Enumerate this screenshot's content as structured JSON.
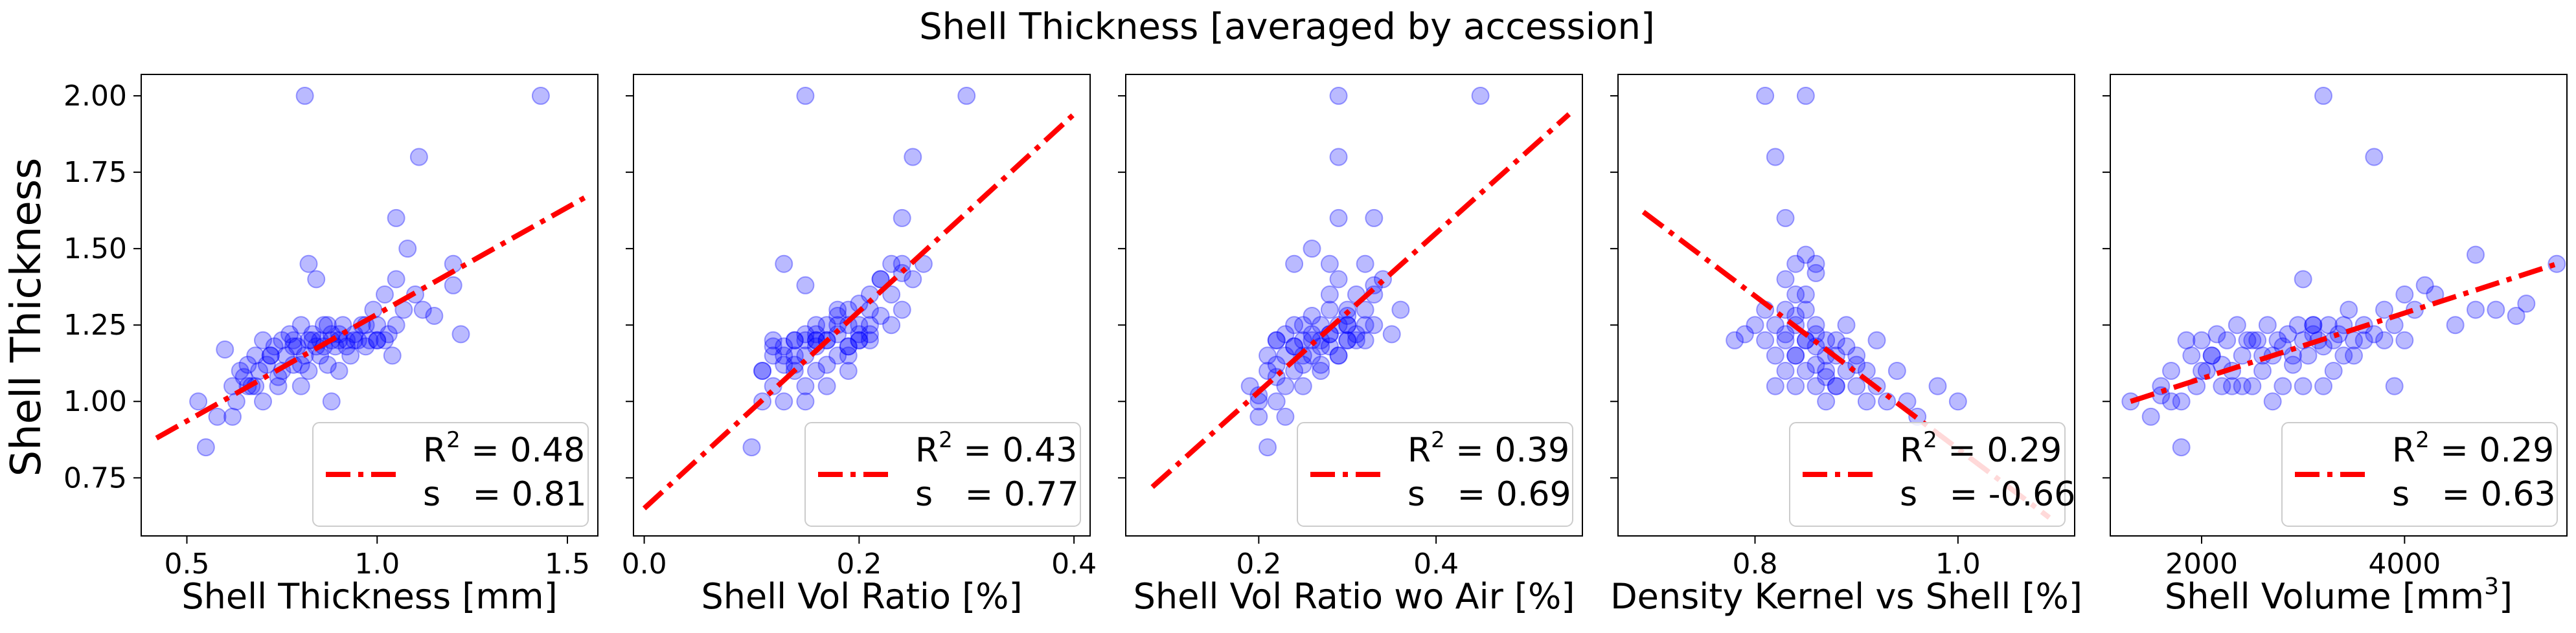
{
  "figure": {
    "title": "Shell Thickness [averaged by accession]",
    "shared_ylabel": "Shell Thickness"
  },
  "colors": {
    "points": "#0000ff",
    "fit_line": "#ff0000",
    "axes": "#000000",
    "legend_border": "#cccccc"
  },
  "chart_data": [
    {
      "type": "scatter",
      "xlabel": "Shell Thickness [mm]",
      "ylabel": "Shell Thickness",
      "xlim": [
        0.38,
        1.58
      ],
      "ylim": [
        0.56,
        2.07
      ],
      "xticks": [
        0.5,
        1.0,
        1.5
      ],
      "xtick_labels": [
        "0.5",
        "1.0",
        "1.5"
      ],
      "yticks": [
        0.75,
        1.0,
        1.25,
        1.5,
        1.75,
        2.0
      ],
      "ytick_labels": [
        "0.75",
        "1.00",
        "1.25",
        "1.50",
        "1.75",
        "2.00"
      ],
      "fit_line": {
        "x": [
          0.42,
          1.55
        ],
        "y": [
          0.88,
          1.67
        ]
      },
      "legend": {
        "r2": "0.48",
        "s": "0.81"
      },
      "series": [
        {
          "x": [
            0.53,
            0.55,
            0.58,
            0.6,
            0.62,
            0.63,
            0.64,
            0.65,
            0.66,
            0.67,
            0.68,
            0.69,
            0.7,
            0.7,
            0.71,
            0.72,
            0.73,
            0.74,
            0.75,
            0.75,
            0.76,
            0.77,
            0.78,
            0.78,
            0.79,
            0.8,
            0.8,
            0.81,
            0.82,
            0.82,
            0.83,
            0.84,
            0.85,
            0.85,
            0.86,
            0.87,
            0.88,
            0.88,
            0.89,
            0.9,
            0.9,
            0.91,
            0.92,
            0.93,
            0.94,
            0.95,
            0.96,
            0.97,
            0.98,
            0.99,
            1.0,
            1.0,
            1.02,
            1.03,
            1.05,
            1.05,
            1.07,
            1.1,
            1.12,
            1.15,
            1.2,
            1.22,
            0.62,
            0.68,
            0.72,
            0.78,
            0.83,
            0.88,
            0.92,
            0.97,
            0.74,
            0.86,
            0.94,
            1.0,
            1.04,
            0.66,
            0.8,
            0.9,
            0.82,
            0.84,
            0.87,
            1.05,
            1.08,
            0.81,
            1.11,
            1.43,
            1.2,
            1.02
          ],
          "y": [
            1.0,
            0.85,
            0.95,
            1.17,
            1.05,
            1.0,
            1.1,
            1.08,
            1.12,
            1.05,
            1.15,
            1.1,
            1.2,
            1.0,
            1.12,
            1.15,
            1.18,
            1.05,
            1.1,
            1.2,
            1.15,
            1.22,
            1.12,
            1.2,
            1.18,
            1.05,
            1.25,
            1.15,
            1.2,
            1.1,
            1.22,
            1.18,
            1.15,
            1.2,
            1.25,
            1.12,
            1.2,
            1.0,
            1.18,
            1.22,
            1.1,
            1.25,
            1.2,
            1.15,
            1.22,
            1.2,
            1.25,
            1.18,
            1.2,
            1.3,
            1.25,
            1.2,
            1.35,
            1.22,
            1.4,
            1.25,
            1.3,
            1.35,
            1.3,
            1.28,
            1.45,
            1.22,
            0.95,
            1.05,
            1.15,
            1.18,
            1.2,
            1.22,
            1.18,
            1.25,
            1.08,
            1.18,
            1.2,
            1.2,
            1.15,
            1.05,
            1.12,
            1.2,
            1.45,
            1.4,
            1.25,
            1.6,
            1.5,
            2.0,
            1.8,
            2.0,
            1.38,
            1.2
          ]
        }
      ]
    },
    {
      "type": "scatter",
      "xlabel": "Shell Vol Ratio [%]",
      "ylabel": "Shell Thickness",
      "xlim": [
        -0.01,
        0.415
      ],
      "ylim": [
        0.56,
        2.07
      ],
      "xticks": [
        0.0,
        0.2,
        0.4
      ],
      "xtick_labels": [
        "0.0",
        "0.2",
        "0.4"
      ],
      "yticks": [
        0.75,
        1.0,
        1.25,
        1.5,
        1.75,
        2.0
      ],
      "ytick_labels": [
        "",
        "",
        "",
        "",
        "",
        ""
      ],
      "fit_line": {
        "x": [
          0.0,
          0.4
        ],
        "y": [
          0.65,
          1.94
        ]
      },
      "legend": {
        "r2": "0.43",
        "s": "0.77"
      },
      "series": [
        {
          "x": [
            0.1,
            0.11,
            0.11,
            0.12,
            0.12,
            0.12,
            0.13,
            0.13,
            0.13,
            0.14,
            0.14,
            0.14,
            0.15,
            0.15,
            0.15,
            0.15,
            0.16,
            0.16,
            0.16,
            0.17,
            0.17,
            0.17,
            0.18,
            0.18,
            0.18,
            0.19,
            0.19,
            0.19,
            0.2,
            0.2,
            0.2,
            0.21,
            0.21,
            0.21,
            0.22,
            0.22,
            0.23,
            0.23,
            0.24,
            0.24,
            0.25,
            0.12,
            0.13,
            0.14,
            0.16,
            0.17,
            0.18,
            0.19,
            0.2,
            0.15,
            0.17,
            0.19,
            0.21,
            0.11,
            0.14,
            0.16,
            0.18,
            0.22,
            0.26,
            0.13,
            0.15,
            0.24,
            0.25,
            0.21,
            0.19,
            0.23,
            0.2,
            0.3,
            0.15,
            0.16,
            0.24
          ],
          "y": [
            0.85,
            1.0,
            1.1,
            1.05,
            1.15,
            1.2,
            1.0,
            1.12,
            1.18,
            1.1,
            1.2,
            1.15,
            1.05,
            1.15,
            1.2,
            1.22,
            1.1,
            1.18,
            1.25,
            1.12,
            1.2,
            1.25,
            1.15,
            1.22,
            1.28,
            1.18,
            1.25,
            1.3,
            1.2,
            1.25,
            1.32,
            1.22,
            1.3,
            1.35,
            1.28,
            1.4,
            1.25,
            1.35,
            1.3,
            1.45,
            1.4,
            1.18,
            1.15,
            1.2,
            1.22,
            1.2,
            1.25,
            1.18,
            1.2,
            1.0,
            1.05,
            1.15,
            1.25,
            1.1,
            1.12,
            1.2,
            1.3,
            1.4,
            1.45,
            1.45,
            1.38,
            1.6,
            1.8,
            1.2,
            1.1,
            1.45,
            1.22,
            2.0,
            2.0,
            1.2,
            1.42
          ]
        }
      ]
    },
    {
      "type": "scatter",
      "xlabel": "Shell Vol Ratio wo Air [%]",
      "ylabel": "Shell Thickness",
      "xlim": [
        0.05,
        0.565
      ],
      "ylim": [
        0.56,
        2.07
      ],
      "xticks": [
        0.2,
        0.4
      ],
      "xtick_labels": [
        "0.2",
        "0.4"
      ],
      "yticks": [
        0.75,
        1.0,
        1.25,
        1.5,
        1.75,
        2.0
      ],
      "ytick_labels": [
        "",
        "",
        "",
        "",
        "",
        ""
      ],
      "fit_line": {
        "x": [
          0.08,
          0.55
        ],
        "y": [
          0.72,
          1.94
        ]
      },
      "legend": {
        "r2": "0.39",
        "s": "0.69"
      },
      "series": [
        {
          "x": [
            0.19,
            0.2,
            0.2,
            0.21,
            0.21,
            0.22,
            0.22,
            0.22,
            0.23,
            0.23,
            0.23,
            0.24,
            0.24,
            0.24,
            0.25,
            0.25,
            0.25,
            0.26,
            0.26,
            0.26,
            0.27,
            0.27,
            0.27,
            0.28,
            0.28,
            0.28,
            0.29,
            0.29,
            0.3,
            0.3,
            0.3,
            0.31,
            0.31,
            0.32,
            0.32,
            0.33,
            0.33,
            0.34,
            0.35,
            0.36,
            0.21,
            0.23,
            0.25,
            0.27,
            0.29,
            0.31,
            0.22,
            0.24,
            0.26,
            0.28,
            0.3,
            0.32,
            0.2,
            0.25,
            0.27,
            0.3,
            0.33,
            0.28,
            0.29,
            0.32,
            0.24,
            0.29,
            0.26,
            0.22,
            0.29,
            0.33,
            0.45,
            0.29,
            0.28,
            0.3
          ],
          "y": [
            1.05,
            0.95,
            1.0,
            1.1,
            1.15,
            1.0,
            1.12,
            1.2,
            1.05,
            1.15,
            1.22,
            1.1,
            1.18,
            1.25,
            1.12,
            1.2,
            1.25,
            1.15,
            1.22,
            1.28,
            1.12,
            1.2,
            1.25,
            1.18,
            1.22,
            1.3,
            1.15,
            1.25,
            1.2,
            1.25,
            1.3,
            1.22,
            1.35,
            1.2,
            1.3,
            1.38,
            1.25,
            1.4,
            1.22,
            1.3,
            0.85,
            0.95,
            1.05,
            1.1,
            1.15,
            1.2,
            1.08,
            1.18,
            1.2,
            1.22,
            1.2,
            1.25,
            1.02,
            1.15,
            1.18,
            1.25,
            1.35,
            1.45,
            1.6,
            1.45,
            1.45,
            1.8,
            1.5,
            1.2,
            2.0,
            1.6,
            2.0,
            1.4,
            1.35,
            1.28
          ]
        }
      ]
    },
    {
      "type": "scatter",
      "xlabel": "Density Kernel vs Shell [%]",
      "ylabel": "Shell Thickness",
      "xlim": [
        0.665,
        1.115
      ],
      "ylim": [
        0.56,
        2.07
      ],
      "xticks": [
        0.8,
        1.0
      ],
      "xtick_labels": [
        "0.8",
        "1.0"
      ],
      "yticks": [
        0.75,
        1.0,
        1.25,
        1.5,
        1.75,
        2.0
      ],
      "ytick_labels": [
        "",
        "",
        "",
        "",
        "",
        ""
      ],
      "fit_line": {
        "x": [
          0.69,
          1.09
        ],
        "y": [
          1.62,
          0.62
        ]
      },
      "legend": {
        "r2": "0.29",
        "s": "-0.66"
      },
      "series": [
        {
          "x": [
            0.78,
            0.79,
            0.8,
            0.81,
            0.81,
            0.82,
            0.82,
            0.83,
            0.83,
            0.83,
            0.84,
            0.84,
            0.84,
            0.85,
            0.85,
            0.85,
            0.86,
            0.86,
            0.86,
            0.87,
            0.87,
            0.87,
            0.88,
            0.88,
            0.88,
            0.89,
            0.89,
            0.9,
            0.9,
            0.91,
            0.91,
            0.92,
            0.93,
            0.94,
            0.95,
            0.82,
            0.83,
            0.84,
            0.85,
            0.86,
            0.87,
            0.88,
            0.84,
            0.85,
            0.86,
            0.89,
            0.92,
            0.96,
            0.98,
            1.0,
            0.84,
            0.85,
            0.86,
            0.81,
            0.82,
            0.83,
            0.85,
            0.86,
            0.84,
            0.87,
            0.9,
            0.83
          ],
          "y": [
            1.2,
            1.22,
            1.25,
            1.2,
            1.3,
            1.15,
            1.25,
            1.2,
            1.3,
            1.4,
            1.15,
            1.25,
            1.35,
            1.1,
            1.2,
            1.3,
            1.05,
            1.18,
            1.25,
            1.1,
            1.2,
            1.15,
            1.05,
            1.15,
            1.2,
            1.1,
            1.18,
            1.05,
            1.12,
            1.0,
            1.1,
            1.05,
            1.0,
            1.1,
            1.0,
            1.05,
            1.1,
            1.15,
            1.2,
            1.22,
            1.0,
            1.05,
            1.45,
            1.48,
            1.42,
            1.25,
            1.2,
            0.95,
            1.05,
            1.0,
            1.28,
            1.35,
            1.12,
            2.0,
            1.8,
            1.6,
            2.0,
            1.45,
            1.05,
            1.08,
            1.15,
            1.22
          ]
        }
      ]
    },
    {
      "type": "scatter",
      "xlabel": "Shell Volume [mm³]",
      "ylabel": "Shell Thickness",
      "xlim": [
        1100,
        5600
      ],
      "ylim": [
        0.56,
        2.07
      ],
      "xticks": [
        2000,
        4000
      ],
      "xtick_labels": [
        "2000",
        "4000"
      ],
      "yticks": [
        0.75,
        1.0,
        1.25,
        1.5,
        1.75,
        2.0
      ],
      "ytick_labels": [
        "",
        "",
        "",
        "",
        "",
        ""
      ],
      "fit_line": {
        "x": [
          1300,
          5500
        ],
        "y": [
          1.0,
          1.45
        ]
      },
      "legend": {
        "r2": "0.29",
        "s": "0.63"
      },
      "series": [
        {
          "x": [
            1300,
            1500,
            1600,
            1700,
            1800,
            1850,
            1900,
            1950,
            2000,
            2050,
            2100,
            2150,
            2200,
            2250,
            2300,
            2350,
            2400,
            2450,
            2500,
            2550,
            2600,
            2650,
            2700,
            2750,
            2800,
            2850,
            2900,
            2950,
            3000,
            3050,
            3100,
            3150,
            3200,
            3250,
            3300,
            3350,
            3400,
            3450,
            3500,
            3600,
            3700,
            3800,
            3900,
            4000,
            4100,
            4200,
            4300,
            4500,
            4700,
            4900,
            5100,
            5200,
            5500,
            1700,
            2000,
            2300,
            2600,
            2900,
            3200,
            3500,
            1800,
            2200,
            2500,
            2800,
            3100,
            3400,
            4000,
            2100,
            2400,
            2700,
            3000,
            3300,
            3600,
            3800,
            3900,
            3000,
            4700,
            3700,
            3200,
            3100,
            1600
          ],
          "y": [
            1.0,
            0.95,
            1.05,
            1.1,
            0.85,
            1.2,
            1.15,
            1.05,
            1.2,
            1.1,
            1.15,
            1.22,
            1.05,
            1.2,
            1.1,
            1.25,
            1.15,
            1.2,
            1.05,
            1.2,
            1.1,
            1.25,
            1.15,
            1.2,
            1.05,
            1.22,
            1.15,
            1.25,
            1.2,
            1.15,
            1.25,
            1.2,
            1.18,
            1.25,
            1.2,
            1.22,
            1.25,
            1.3,
            1.2,
            1.25,
            1.22,
            1.3,
            1.25,
            1.35,
            1.3,
            1.38,
            1.35,
            1.25,
            1.3,
            1.3,
            1.28,
            1.32,
            1.45,
            1.0,
            1.1,
            1.05,
            1.15,
            1.12,
            1.05,
            1.15,
            1.0,
            1.12,
            1.2,
            1.18,
            1.22,
            1.15,
            1.2,
            1.15,
            1.05,
            1.0,
            1.05,
            1.1,
            1.2,
            1.2,
            1.05,
            1.4,
            1.48,
            1.8,
            2.0,
            1.25,
            1.02
          ]
        }
      ]
    }
  ]
}
